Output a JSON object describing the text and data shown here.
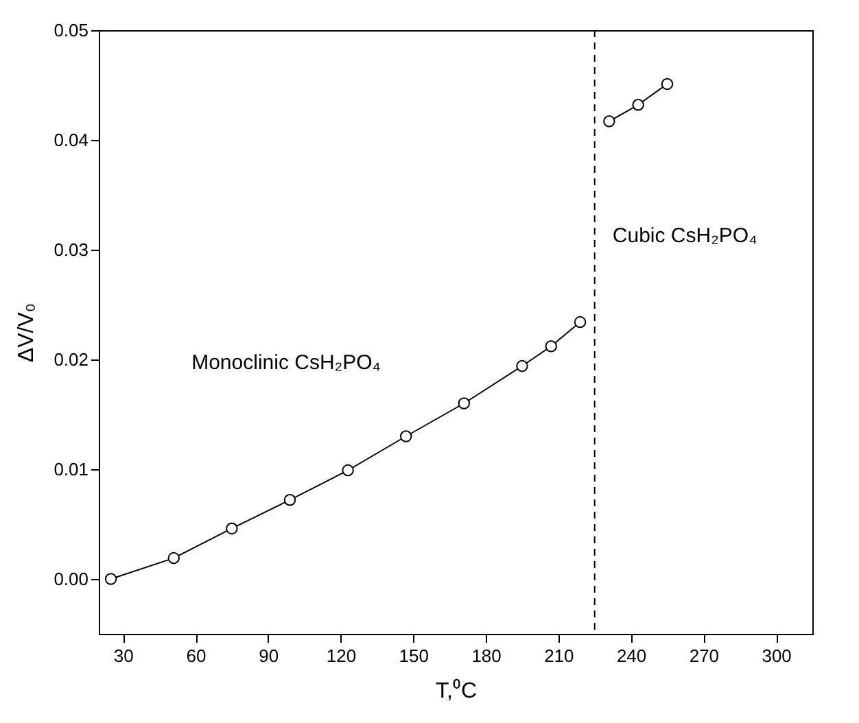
{
  "chart_data": {
    "type": "line",
    "xlabel": "T,⁰C",
    "ylabel": "ΔV/V₀",
    "annotations": [
      "Monoclinic CsH₂PO₄",
      "Cubic CsH₂PO₄"
    ],
    "series": [
      {
        "color": "#000000",
        "x": [
          25,
          51,
          75,
          99,
          123,
          147,
          171,
          195,
          207,
          219
        ],
        "values": [
          0.0,
          0.0019,
          0.0046,
          0.0072,
          0.0099,
          0.013,
          0.016,
          0.0194,
          0.0212,
          0.0234
        ]
      },
      {
        "color": "#000000",
        "x": [
          231,
          243,
          255
        ],
        "values": [
          0.0417,
          0.0432,
          0.0451
        ]
      }
    ],
    "xlim": [
      20,
      315
    ],
    "xticks": [
      30,
      60,
      90,
      120,
      150,
      180,
      210,
      240,
      270,
      300
    ],
    "ylim": [
      -0.005,
      0.05
    ],
    "yticks": [
      {
        "value": 0,
        "label": "0.00"
      },
      {
        "value": 0.01,
        "label": "0.01"
      },
      {
        "value": 0.02,
        "label": "0.02"
      },
      {
        "value": 0.03,
        "label": "0.03"
      },
      {
        "value": 0.04,
        "label": "0.04"
      },
      {
        "value": 0.05,
        "label": "0.05"
      }
    ],
    "ref_lines": [
      {
        "axis": "x",
        "value": 225,
        "line_style": "dashed",
        "color": "#000000"
      }
    ],
    "marker": "circle",
    "line_style": "solid",
    "grid": false
  }
}
